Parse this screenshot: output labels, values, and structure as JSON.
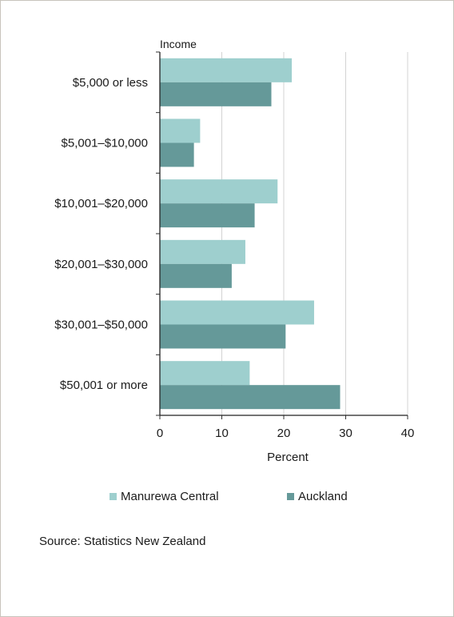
{
  "chart_data": {
    "type": "bar",
    "orientation": "horizontal",
    "title": "",
    "category_axis_title": "Income",
    "xlabel": "Percent",
    "ylabel": "Income",
    "xlim": [
      0,
      40
    ],
    "x_ticks": [
      0,
      10,
      20,
      30,
      40
    ],
    "grid": "vertical gridlines",
    "legend_position": "bottom",
    "categories": [
      "$5,000 or less",
      "$5,001–$10,000",
      "$10,001–$20,000",
      "$20,001–$30,000",
      "$30,001–$50,000",
      "$50,001 or more"
    ],
    "series": [
      {
        "name": "Manurewa Central",
        "color": "#9ecfce",
        "values": [
          21.3,
          6.5,
          19.0,
          13.8,
          24.9,
          14.5
        ]
      },
      {
        "name": "Auckland",
        "color": "#659999",
        "values": [
          18.0,
          5.5,
          15.3,
          11.6,
          20.3,
          29.1
        ]
      }
    ],
    "source": "Source: Statistics New Zealand"
  }
}
